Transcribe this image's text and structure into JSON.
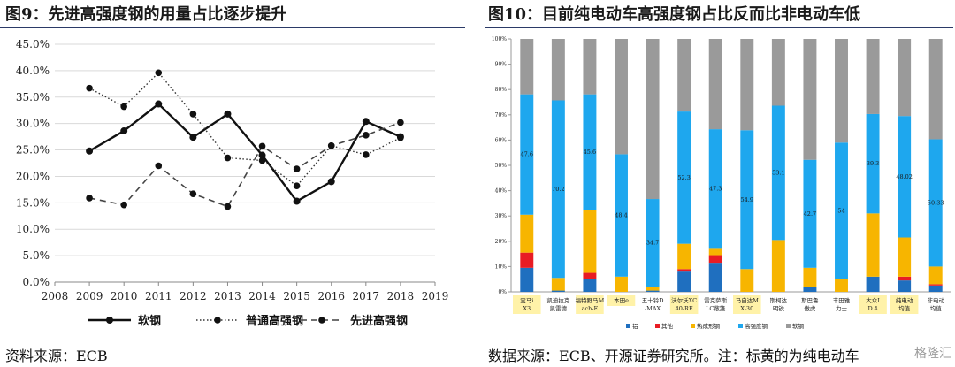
{
  "left": {
    "title": "图9：先进高强度钢的用量占比逐步提升",
    "source": "资料来源：ECB",
    "chart_data": {
      "type": "line",
      "x": [
        2009,
        2010,
        2011,
        2012,
        2013,
        2014,
        2015,
        2016,
        2017,
        2018
      ],
      "x_ticks": [
        "2008",
        "2009",
        "2010",
        "2011",
        "2012",
        "2013",
        "2014",
        "2015",
        "2016",
        "2017",
        "2018",
        "2019"
      ],
      "y_ticks": [
        "0.0%",
        "5.0%",
        "10.0%",
        "15.0%",
        "20.0%",
        "25.0%",
        "30.0%",
        "35.0%",
        "40.0%",
        "45.0%"
      ],
      "ylim": [
        0,
        45
      ],
      "xlim": [
        2008,
        2019
      ],
      "grid": true,
      "legend_position": "bottom",
      "series": [
        {
          "name": "软钢",
          "style": "solid",
          "values": [
            24.8,
            28.6,
            33.7,
            27.4,
            31.8,
            24.0,
            15.3,
            19.0,
            30.4,
            27.5
          ]
        },
        {
          "name": "普通高强钢",
          "style": "dotted",
          "values": [
            36.7,
            33.2,
            39.6,
            31.8,
            23.5,
            23.0,
            18.2,
            25.8,
            24.1,
            27.3
          ]
        },
        {
          "name": "先进高强钢",
          "style": "dashed",
          "values": [
            15.9,
            14.6,
            22.0,
            16.7,
            14.3,
            25.7,
            21.4,
            25.8,
            27.8,
            30.2
          ]
        }
      ]
    }
  },
  "right": {
    "title": "图10：目前纯电动车高强度钢占比反而比非电动车低",
    "source": "数据来源：ECB、开源证券研究所。注：标黄的为纯电动车",
    "watermark": "格隆汇",
    "chart_data": {
      "type": "bar",
      "stacked": true,
      "ylim": [
        0,
        100
      ],
      "y_ticks": [
        "0%",
        "10%",
        "20%",
        "30%",
        "40%",
        "50%",
        "60%",
        "70%",
        "80%",
        "90%",
        "100%"
      ],
      "categories": [
        "宝马iX3",
        "凯迪拉克凯雷德",
        "福特野马Mach-E",
        "本田e",
        "五十铃D-MAX",
        "沃尔沃XC40-RE",
        "雷克萨斯LC敞篷",
        "马自达MX-30",
        "斯柯达明锐",
        "斯巴鲁傲虎",
        "丰田雅力士",
        "大众ID.4",
        "纯电动均值",
        "非电动均值"
      ],
      "highlighted": [
        true,
        false,
        true,
        true,
        false,
        true,
        false,
        true,
        false,
        false,
        false,
        true,
        true,
        false
      ],
      "colors": {
        "铝": "#1f6fbf",
        "其他": "#e81c24",
        "热成形钢": "#f7b500",
        "高强度钢": "#1ea7ee",
        "软钢": "#9a9a9a"
      },
      "series": [
        {
          "name": "铝",
          "values": [
            9.5,
            0.5,
            5.0,
            0.0,
            0.5,
            8.0,
            11.5,
            0.0,
            0.0,
            2.0,
            0.0,
            6.0,
            4.5,
            2.5
          ]
        },
        {
          "name": "其他",
          "values": [
            6.0,
            0.0,
            2.5,
            0.0,
            0.0,
            1.0,
            3.0,
            0.0,
            0.0,
            0.0,
            0.0,
            0.0,
            1.5,
            0.5
          ]
        },
        {
          "name": "热成形钢",
          "values": [
            15.0,
            5.0,
            25.0,
            6.0,
            1.5,
            10.0,
            2.5,
            9.0,
            20.5,
            7.5,
            5.0,
            25.0,
            15.5,
            7.0
          ]
        },
        {
          "name": "高强度钢",
          "values": [
            47.6,
            70.2,
            45.6,
            48.4,
            34.7,
            52.3,
            47.3,
            54.9,
            53.1,
            42.7,
            54.0,
            39.3,
            48.02,
            50.33
          ]
        },
        {
          "name": "软钢",
          "values": [
            21.9,
            24.3,
            21.9,
            45.6,
            63.3,
            28.7,
            35.7,
            36.1,
            26.4,
            47.8,
            41.0,
            29.7,
            30.48,
            39.67
          ]
        }
      ],
      "value_labels": [
        "47.6",
        "70.2",
        "45.6",
        "48.4",
        "34.7",
        "52.3",
        "47.3",
        "54.9",
        "53.1",
        "42.7",
        "54",
        "39.3",
        "48.02",
        "50.33"
      ]
    }
  }
}
